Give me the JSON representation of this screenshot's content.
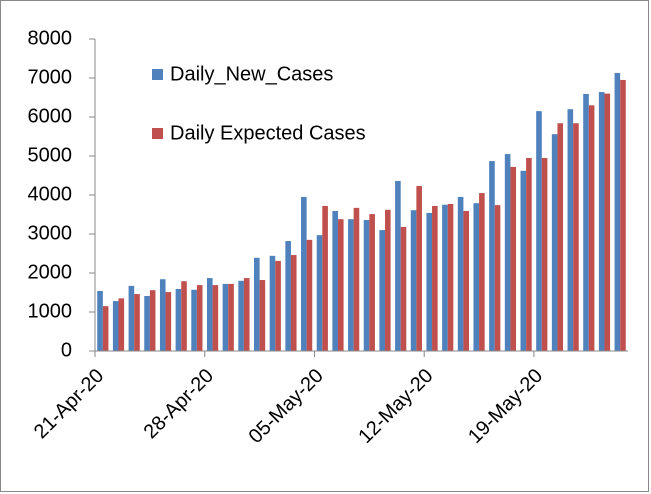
{
  "chart_data": {
    "type": "bar",
    "categories": [
      "21-Apr-20",
      null,
      null,
      null,
      null,
      null,
      null,
      "28-Apr-20",
      null,
      null,
      null,
      null,
      null,
      null,
      "05-May-20",
      null,
      null,
      null,
      null,
      null,
      null,
      "12-May-20",
      null,
      null,
      null,
      null,
      null,
      null,
      "19-May-20",
      null,
      null,
      null,
      null,
      null
    ],
    "series": [
      {
        "name": "Daily_New_Cases",
        "color": "#4f81bd",
        "values": [
          1540,
          1280,
          1670,
          1410,
          1840,
          1590,
          1570,
          1870,
          1720,
          1800,
          2390,
          2440,
          2820,
          3950,
          2970,
          3590,
          3380,
          3360,
          3100,
          4360,
          3610,
          3540,
          3750,
          3950,
          3790,
          4870,
          5050,
          4620,
          6150,
          5560,
          6200,
          6590,
          6640,
          7130
        ]
      },
      {
        "name": "Daily Expected Cases",
        "color": "#c0504d",
        "values": [
          1150,
          1350,
          1460,
          1560,
          1510,
          1790,
          1690,
          1690,
          1720,
          1870,
          1820,
          2310,
          2460,
          2850,
          3720,
          3380,
          3670,
          3510,
          3620,
          3180,
          4230,
          3720,
          3770,
          3590,
          4050,
          3740,
          4720,
          4950,
          4950,
          5840,
          5840,
          6300,
          6600,
          6950
        ]
      }
    ],
    "ylim": [
      0,
      8000
    ],
    "yticks": [
      0,
      1000,
      2000,
      3000,
      4000,
      5000,
      6000,
      7000,
      8000
    ],
    "legend": "upper-left",
    "grid": false
  }
}
